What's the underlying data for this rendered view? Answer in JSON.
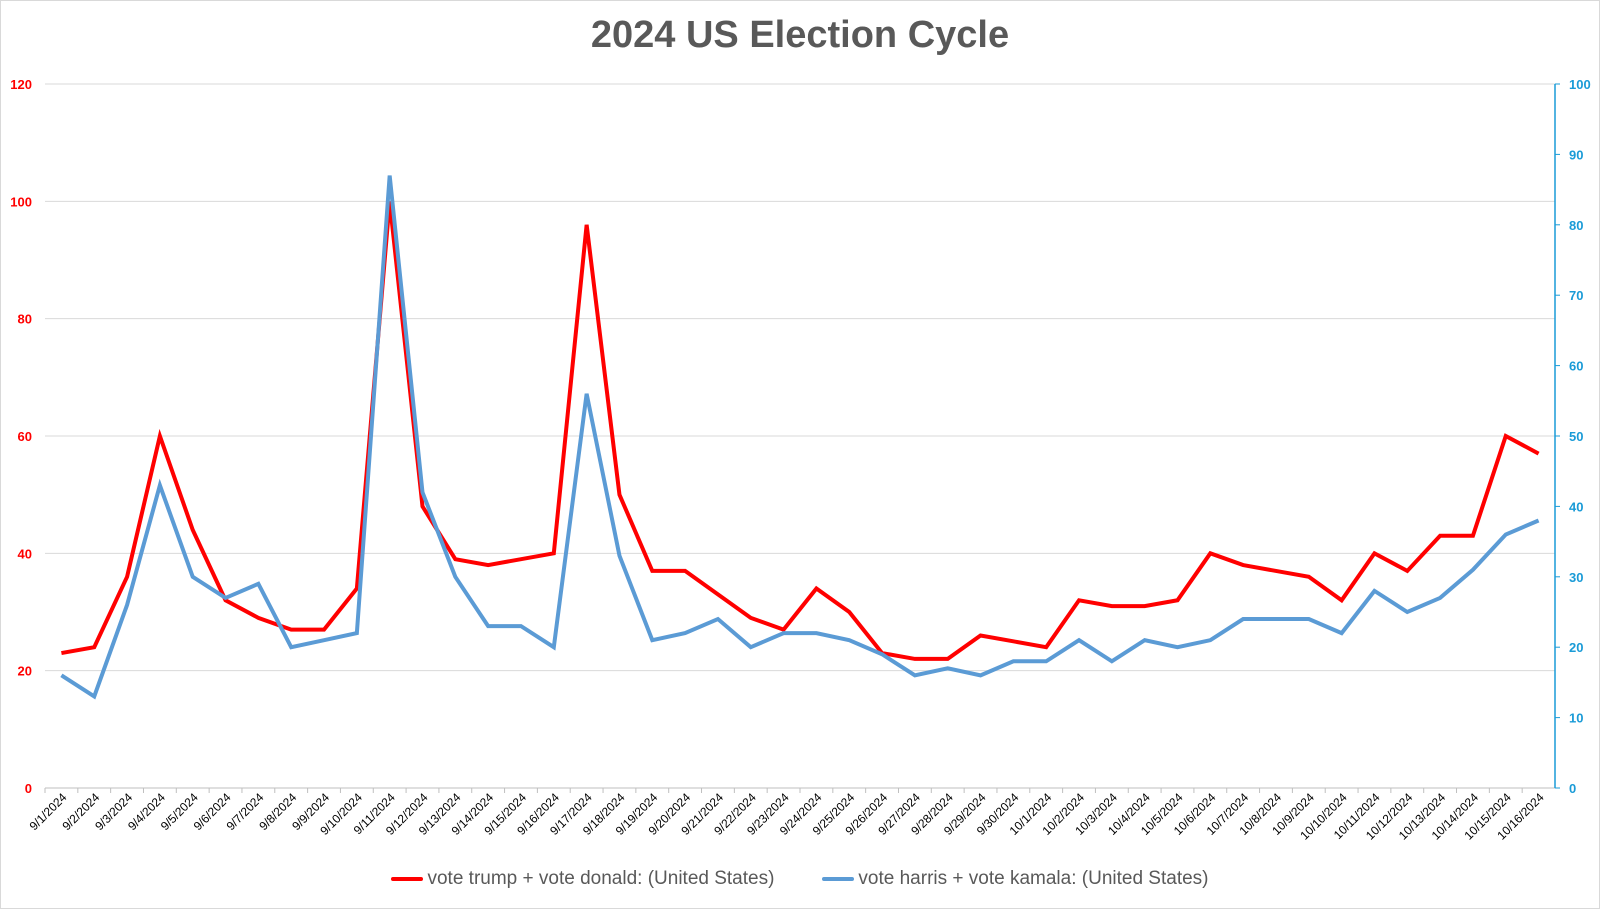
{
  "chart_data": {
    "type": "line",
    "title": "2024 US Election Cycle",
    "x": [
      "9/1/2024",
      "9/2/2024",
      "9/3/2024",
      "9/4/2024",
      "9/5/2024",
      "9/6/2024",
      "9/7/2024",
      "9/8/2024",
      "9/9/2024",
      "9/10/2024",
      "9/11/2024",
      "9/12/2024",
      "9/13/2024",
      "9/14/2024",
      "9/15/2024",
      "9/16/2024",
      "9/17/2024",
      "9/18/2024",
      "9/19/2024",
      "9/20/2024",
      "9/21/2024",
      "9/22/2024",
      "9/23/2024",
      "9/24/2024",
      "9/25/2024",
      "9/26/2024",
      "9/27/2024",
      "9/28/2024",
      "9/29/2024",
      "9/30/2024",
      "10/1/2024",
      "10/2/2024",
      "10/3/2024",
      "10/4/2024",
      "10/5/2024",
      "10/6/2024",
      "10/7/2024",
      "10/8/2024",
      "10/9/2024",
      "10/10/2024",
      "10/11/2024",
      "10/12/2024",
      "10/13/2024",
      "10/14/2024",
      "10/15/2024",
      "10/16/2024"
    ],
    "series": [
      {
        "name": "vote trump + vote donald: (United States)",
        "axis": "left",
        "color": "#ff0000",
        "values": [
          23,
          24,
          36,
          60,
          44,
          32,
          29,
          27,
          27,
          34,
          100,
          48,
          39,
          38,
          39,
          40,
          96,
          50,
          37,
          37,
          33,
          29,
          27,
          34,
          30,
          23,
          22,
          22,
          26,
          25,
          24,
          32,
          31,
          31,
          32,
          40,
          38,
          37,
          36,
          32,
          40,
          37,
          43,
          43,
          60,
          57
        ]
      },
      {
        "name": "vote harris + vote kamala: (United States)",
        "axis": "right",
        "color": "#5b9bd5",
        "values": [
          16,
          13,
          26,
          43,
          30,
          27,
          29,
          20,
          21,
          22,
          87,
          42,
          30,
          23,
          23,
          20,
          56,
          33,
          21,
          22,
          24,
          20,
          22,
          22,
          21,
          19,
          16,
          17,
          16,
          18,
          18,
          21,
          18,
          21,
          20,
          21,
          24,
          24,
          24,
          22,
          28,
          25,
          27,
          31,
          36,
          38
        ]
      }
    ],
    "y_left": {
      "ylim": [
        0,
        120
      ],
      "ticks": [
        0,
        20,
        40,
        60,
        80,
        100,
        120
      ],
      "color": "#ff0000"
    },
    "y_right": {
      "ylim": [
        0,
        100
      ],
      "ticks": [
        0,
        10,
        20,
        30,
        40,
        50,
        60,
        70,
        80,
        90,
        100
      ],
      "color": "#1a9bd7"
    },
    "grid": true,
    "legend": "bottom"
  }
}
